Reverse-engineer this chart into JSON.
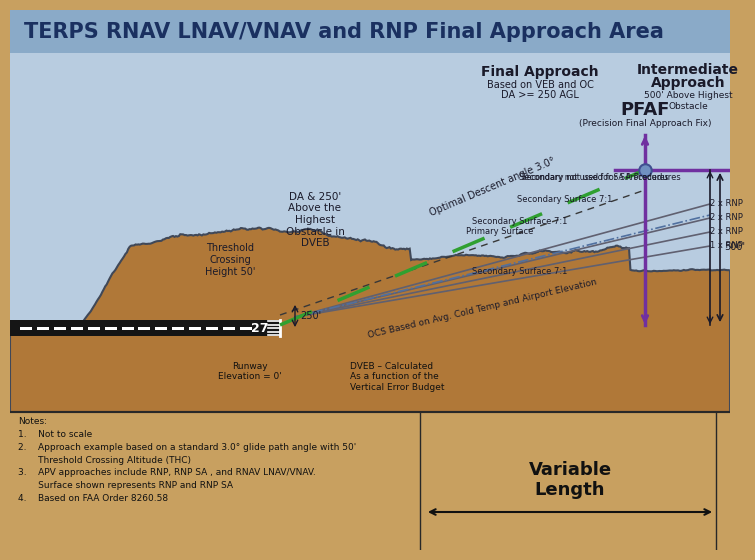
{
  "title": "TERPS RNAV LNAV/VNAV and RNP Final Approach Area",
  "title_color": "#1a3060",
  "title_bg": "#8aaac8",
  "sky_color": "#b8cce0",
  "terrain_color": "#b07838",
  "terrain_outline": "#404858",
  "notes_bg": "#c8a060",
  "purple_color": "#7030a0",
  "green_color": "#30a030",
  "dark_text": "#1a1a2a",
  "runway_dark": "#181818",
  "runway_light": "#e8e8e8",
  "surface_line_color": "#606070",
  "blue_dash_color": "#5070a0",
  "final_approach_title": "Final Approach",
  "final_approach_sub1": "Based on VEB and OC",
  "final_approach_sub2": "DA >= 250 AGL",
  "intermediate_title": "Intermediate",
  "intermediate_title2": "Approach",
  "intermediate_sub": "500' Above Highest\nObstacle",
  "pfaf_label": "PFAF",
  "pfaf_sub": "(Precision Final Approach Fix)",
  "da_label": "DA & 250'\nAbove the\nHighest\nObstacle in\nDVEB",
  "threshold_label": "Threshold\nCrossing\nHeight 50'",
  "runway_elev_label": "Runway\nElevation = 0'",
  "dveb_label": "DVEB – Calculated\nAs a function of the\nVertical Error Budget",
  "ocs_label": "OCS Based on Avg. Cold Temp and Airport Elevation",
  "angle_label": "Optimal Descent angle 3.0°",
  "primary_label": "Primary Surface",
  "sec_label": "Secondary Surface 7:1",
  "sec_note": "Secondary not used for SA Procedures",
  "rnp_labels": [
    "1 x RNP",
    "2 x RNP",
    "2 x RNP",
    "2 x RNP"
  ],
  "variable_label": "Variable",
  "length_label": "Length",
  "notes_text": "Notes:\n1.    Not to scale\n2.    Approach example based on a standard 3.0° glide path angle with 50'\n       Threshold Crossing Altitude (THC)\n3.    APV approaches include RNP, RNP SA , and RNAV LNAV/VNAV.\n       Surface shown represents RNP and RNP SA\n4.    Based on FAA Order 8260.58",
  "ft500": "500'",
  "ft250": "250'"
}
